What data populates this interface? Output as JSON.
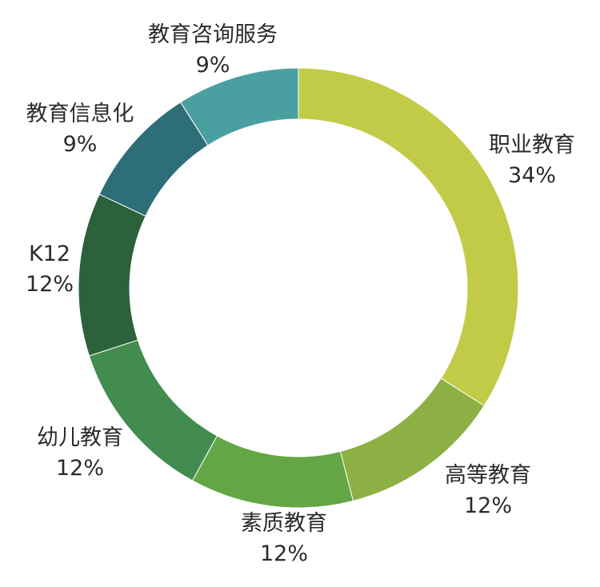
{
  "chart_data": {
    "type": "pie",
    "style": "donut",
    "slices": [
      {
        "label": "职业教育",
        "value": 34,
        "value_label": "34%",
        "color": "#c2cb47"
      },
      {
        "label": "高等教育",
        "value": 12,
        "value_label": "12%",
        "color": "#8db044"
      },
      {
        "label": "素质教育",
        "value": 12,
        "value_label": "12%",
        "color": "#64a645"
      },
      {
        "label": "幼儿教育",
        "value": 12,
        "value_label": "12%",
        "color": "#418c4e"
      },
      {
        "label": "K12",
        "value": 12,
        "value_label": "12%",
        "color": "#2b623b"
      },
      {
        "label": "教育信息化",
        "value": 9,
        "value_label": "9%",
        "color": "#2e6e78"
      },
      {
        "label": "教育咨询服务",
        "value": 9,
        "value_label": "9%",
        "color": "#4aa0a0"
      }
    ],
    "legend": "none",
    "labels": "outside"
  }
}
